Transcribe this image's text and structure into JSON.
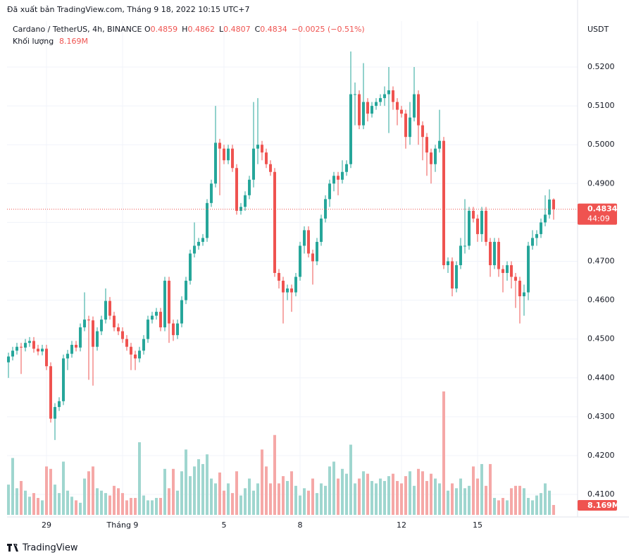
{
  "watermark": "Đã xuất bản TradingView.com, Tháng 9 18, 2022 10:15 UTC+7",
  "footer": "TradingView",
  "chart_data": {
    "type": "candlestick",
    "title": "Cardano / TetherUS, 4h, BINANCE",
    "ohlc_letters": [
      "O",
      "H",
      "L",
      "C"
    ],
    "change": "−0.0025 (−0.51%)",
    "currency": "USDT",
    "countdown": "44:09",
    "up_color": "#26a69a",
    "down_color": "#ef5350",
    "volume_up_color": "#9fd6cf",
    "volume_down_color": "#f5a8a7",
    "volume_name": "Khối lượng",
    "volume_last_label": "8.169M",
    "grid": true,
    "ylim": [
      0.4042,
      0.5318
    ],
    "yticks": [
      {
        "value": 0.41,
        "label": "0.4100"
      },
      {
        "value": 0.42,
        "label": "0.4200"
      },
      {
        "value": 0.43,
        "label": "0.4300"
      },
      {
        "value": 0.44,
        "label": "0.4400"
      },
      {
        "value": 0.45,
        "label": "0.4500"
      },
      {
        "value": 0.46,
        "label": "0.4600"
      },
      {
        "value": 0.47,
        "label": "0.4700"
      },
      {
        "value": 0.48,
        "label": "0.4800"
      },
      {
        "value": 0.49,
        "label": "0.4900"
      },
      {
        "value": 0.5,
        "label": "0.5000"
      },
      {
        "value": 0.51,
        "label": "0.5100"
      },
      {
        "value": 0.52,
        "label": "0.5200"
      }
    ],
    "categories": [
      null,
      null,
      null,
      null,
      null,
      null,
      null,
      null,
      null,
      "29",
      null,
      null,
      null,
      null,
      null,
      null,
      null,
      null,
      null,
      null,
      null,
      null,
      null,
      null,
      null,
      null,
      null,
      "Tháng 9",
      null,
      null,
      null,
      null,
      null,
      null,
      null,
      null,
      null,
      null,
      null,
      null,
      null,
      null,
      null,
      null,
      null,
      null,
      null,
      null,
      null,
      null,
      null,
      "5",
      null,
      null,
      null,
      null,
      null,
      null,
      null,
      null,
      null,
      null,
      null,
      null,
      null,
      null,
      null,
      null,
      null,
      "8",
      null,
      null,
      null,
      null,
      null,
      null,
      null,
      null,
      null,
      null,
      null,
      null,
      null,
      null,
      null,
      null,
      null,
      null,
      null,
      null,
      null,
      null,
      null,
      "12",
      null,
      null,
      null,
      null,
      null,
      null,
      null,
      null,
      null,
      null,
      null,
      null,
      null,
      null,
      null,
      null,
      null,
      "15",
      null,
      null,
      null,
      null,
      null,
      null,
      null,
      null,
      null,
      null,
      null,
      null,
      null,
      null,
      null,
      null,
      null,
      null
    ],
    "open": [
      0.444,
      0.4455,
      0.447,
      0.448,
      0.4478,
      0.449,
      0.4495,
      0.4475,
      0.4468,
      0.4475,
      0.443,
      0.4295,
      0.4325,
      0.434,
      0.445,
      0.4462,
      0.4485,
      0.4478,
      0.453,
      0.455,
      0.4548,
      0.448,
      0.452,
      0.455,
      0.4598,
      0.456,
      0.453,
      0.452,
      0.45,
      0.448,
      0.446,
      0.445,
      0.447,
      0.45,
      0.455,
      0.456,
      0.457,
      0.453,
      0.465,
      0.454,
      0.451,
      0.454,
      0.46,
      0.465,
      0.472,
      0.474,
      0.475,
      0.476,
      0.485,
      0.49,
      0.5005,
      0.499,
      0.496,
      0.499,
      0.494,
      0.483,
      0.484,
      0.487,
      0.491,
      0.499,
      0.5,
      0.498,
      0.495,
      0.493,
      0.467,
      0.465,
      0.462,
      0.463,
      0.462,
      0.466,
      0.474,
      0.478,
      0.472,
      0.47,
      0.475,
      0.481,
      0.486,
      0.49,
      0.492,
      0.491,
      0.493,
      0.495,
      0.513,
      0.513,
      0.505,
      0.511,
      0.508,
      0.51,
      0.511,
      0.512,
      0.513,
      0.514,
      0.511,
      0.509,
      0.508,
      0.502,
      0.507,
      0.513,
      0.505,
      0.502,
      0.498,
      0.495,
      0.499,
      0.501,
      0.469,
      0.47,
      0.463,
      0.469,
      0.474,
      0.474,
      0.483,
      0.481,
      0.477,
      0.483,
      0.475,
      0.469,
      0.475,
      0.468,
      0.467,
      0.469,
      0.466,
      0.465,
      0.461,
      0.462,
      0.474,
      0.476,
      0.477,
      0.48,
      0.482,
      0.4859
    ],
    "high": [
      0.4465,
      0.448,
      0.449,
      0.449,
      0.45,
      0.4505,
      0.4505,
      0.4485,
      0.4485,
      0.4485,
      0.444,
      0.4335,
      0.435,
      0.446,
      0.4472,
      0.4495,
      0.4495,
      0.454,
      0.462,
      0.456,
      0.4558,
      0.453,
      0.456,
      0.463,
      0.4608,
      0.457,
      0.454,
      0.453,
      0.451,
      0.449,
      0.447,
      0.448,
      0.451,
      0.456,
      0.457,
      0.458,
      0.458,
      0.466,
      0.466,
      0.455,
      0.455,
      0.461,
      0.466,
      0.473,
      0.48,
      0.476,
      0.477,
      0.486,
      0.491,
      0.51,
      0.5015,
      0.5,
      0.5,
      0.5,
      0.495,
      0.485,
      0.488,
      0.492,
      0.511,
      0.512,
      0.501,
      0.499,
      0.496,
      0.494,
      0.468,
      0.466,
      0.464,
      0.464,
      0.467,
      0.475,
      0.479,
      0.479,
      0.473,
      0.476,
      0.482,
      0.487,
      0.491,
      0.493,
      0.493,
      0.496,
      0.496,
      0.524,
      0.516,
      0.514,
      0.521,
      0.512,
      0.511,
      0.512,
      0.513,
      0.515,
      0.52,
      0.515,
      0.512,
      0.51,
      0.509,
      0.511,
      0.52,
      0.514,
      0.506,
      0.503,
      0.499,
      0.5,
      0.509,
      0.502,
      0.471,
      0.471,
      0.47,
      0.476,
      0.486,
      0.484,
      0.484,
      0.482,
      0.484,
      0.484,
      0.476,
      0.476,
      0.476,
      0.469,
      0.47,
      0.47,
      0.467,
      0.466,
      0.464,
      0.475,
      0.478,
      0.478,
      0.481,
      0.487,
      0.4885,
      0.4862
    ],
    "low": [
      0.44,
      0.4445,
      0.446,
      0.441,
      0.4468,
      0.448,
      0.4465,
      0.4458,
      0.4458,
      0.442,
      0.4285,
      0.424,
      0.4315,
      0.433,
      0.442,
      0.4452,
      0.4468,
      0.4468,
      0.452,
      0.4395,
      0.438,
      0.447,
      0.451,
      0.454,
      0.455,
      0.452,
      0.451,
      0.449,
      0.447,
      0.442,
      0.442,
      0.444,
      0.446,
      0.449,
      0.454,
      0.455,
      0.452,
      0.452,
      0.449,
      0.4495,
      0.45,
      0.453,
      0.459,
      0.464,
      0.471,
      0.473,
      0.474,
      0.475,
      0.484,
      0.489,
      0.487,
      0.495,
      0.495,
      0.493,
      0.482,
      0.482,
      0.483,
      0.486,
      0.489,
      0.495,
      0.496,
      0.494,
      0.492,
      0.466,
      0.463,
      0.454,
      0.46,
      0.457,
      0.461,
      0.465,
      0.472,
      0.471,
      0.464,
      0.469,
      0.474,
      0.48,
      0.484,
      0.488,
      0.487,
      0.49,
      0.492,
      0.494,
      0.505,
      0.504,
      0.504,
      0.506,
      0.507,
      0.509,
      0.51,
      0.51,
      0.503,
      0.509,
      0.505,
      0.507,
      0.499,
      0.5,
      0.506,
      0.5,
      0.496,
      0.492,
      0.49,
      0.493,
      0.498,
      0.468,
      0.467,
      0.461,
      0.462,
      0.468,
      0.472,
      0.473,
      0.48,
      0.475,
      0.475,
      0.474,
      0.466,
      0.468,
      0.466,
      0.462,
      0.465,
      0.463,
      0.458,
      0.454,
      0.456,
      0.46,
      0.473,
      0.474,
      0.476,
      0.479,
      0.481,
      0.4807
    ],
    "close": [
      0.4455,
      0.447,
      0.448,
      0.4478,
      0.449,
      0.4495,
      0.4475,
      0.4468,
      0.4475,
      0.443,
      0.4295,
      0.4325,
      0.434,
      0.445,
      0.4462,
      0.4485,
      0.4478,
      0.453,
      0.455,
      0.4548,
      0.448,
      0.452,
      0.455,
      0.4598,
      0.456,
      0.453,
      0.452,
      0.45,
      0.448,
      0.446,
      0.445,
      0.447,
      0.45,
      0.455,
      0.456,
      0.457,
      0.453,
      0.465,
      0.454,
      0.451,
      0.454,
      0.46,
      0.465,
      0.472,
      0.474,
      0.475,
      0.476,
      0.485,
      0.49,
      0.5005,
      0.499,
      0.496,
      0.499,
      0.494,
      0.483,
      0.484,
      0.487,
      0.491,
      0.499,
      0.5,
      0.498,
      0.495,
      0.493,
      0.467,
      0.465,
      0.462,
      0.463,
      0.462,
      0.466,
      0.474,
      0.478,
      0.472,
      0.47,
      0.475,
      0.481,
      0.486,
      0.49,
      0.492,
      0.491,
      0.493,
      0.495,
      0.513,
      0.513,
      0.505,
      0.511,
      0.508,
      0.51,
      0.511,
      0.512,
      0.513,
      0.514,
      0.511,
      0.509,
      0.508,
      0.502,
      0.507,
      0.513,
      0.505,
      0.502,
      0.498,
      0.495,
      0.499,
      0.501,
      0.469,
      0.47,
      0.463,
      0.469,
      0.474,
      0.474,
      0.483,
      0.481,
      0.477,
      0.483,
      0.475,
      0.469,
      0.475,
      0.468,
      0.467,
      0.469,
      0.466,
      0.465,
      0.461,
      0.462,
      0.474,
      0.476,
      0.477,
      0.48,
      0.482,
      0.4859,
      0.4834
    ],
    "volume": [
      25,
      47,
      22,
      28,
      20,
      15,
      18,
      14,
      12,
      40,
      38,
      25,
      18,
      44,
      20,
      15,
      12,
      10,
      30,
      36,
      40,
      22,
      20,
      18,
      16,
      24,
      22,
      18,
      12,
      14,
      14,
      60,
      16,
      12,
      12,
      14,
      14,
      38,
      22,
      38,
      20,
      36,
      54,
      32,
      40,
      46,
      42,
      50,
      30,
      26,
      35,
      20,
      26,
      18,
      36,
      16,
      22,
      30,
      20,
      26,
      54,
      40,
      26,
      66,
      26,
      32,
      28,
      36,
      24,
      16,
      22,
      20,
      30,
      18,
      26,
      24,
      40,
      44,
      30,
      38,
      34,
      58,
      26,
      30,
      36,
      34,
      28,
      26,
      30,
      28,
      32,
      34,
      28,
      26,
      32,
      36,
      24,
      38,
      36,
      28,
      34,
      30,
      26,
      102,
      20,
      26,
      22,
      30,
      22,
      24,
      40,
      30,
      42,
      24,
      42,
      14,
      12,
      14,
      12,
      22,
      24,
      24,
      22,
      14,
      12,
      16,
      18,
      26,
      20,
      8.169
    ]
  }
}
